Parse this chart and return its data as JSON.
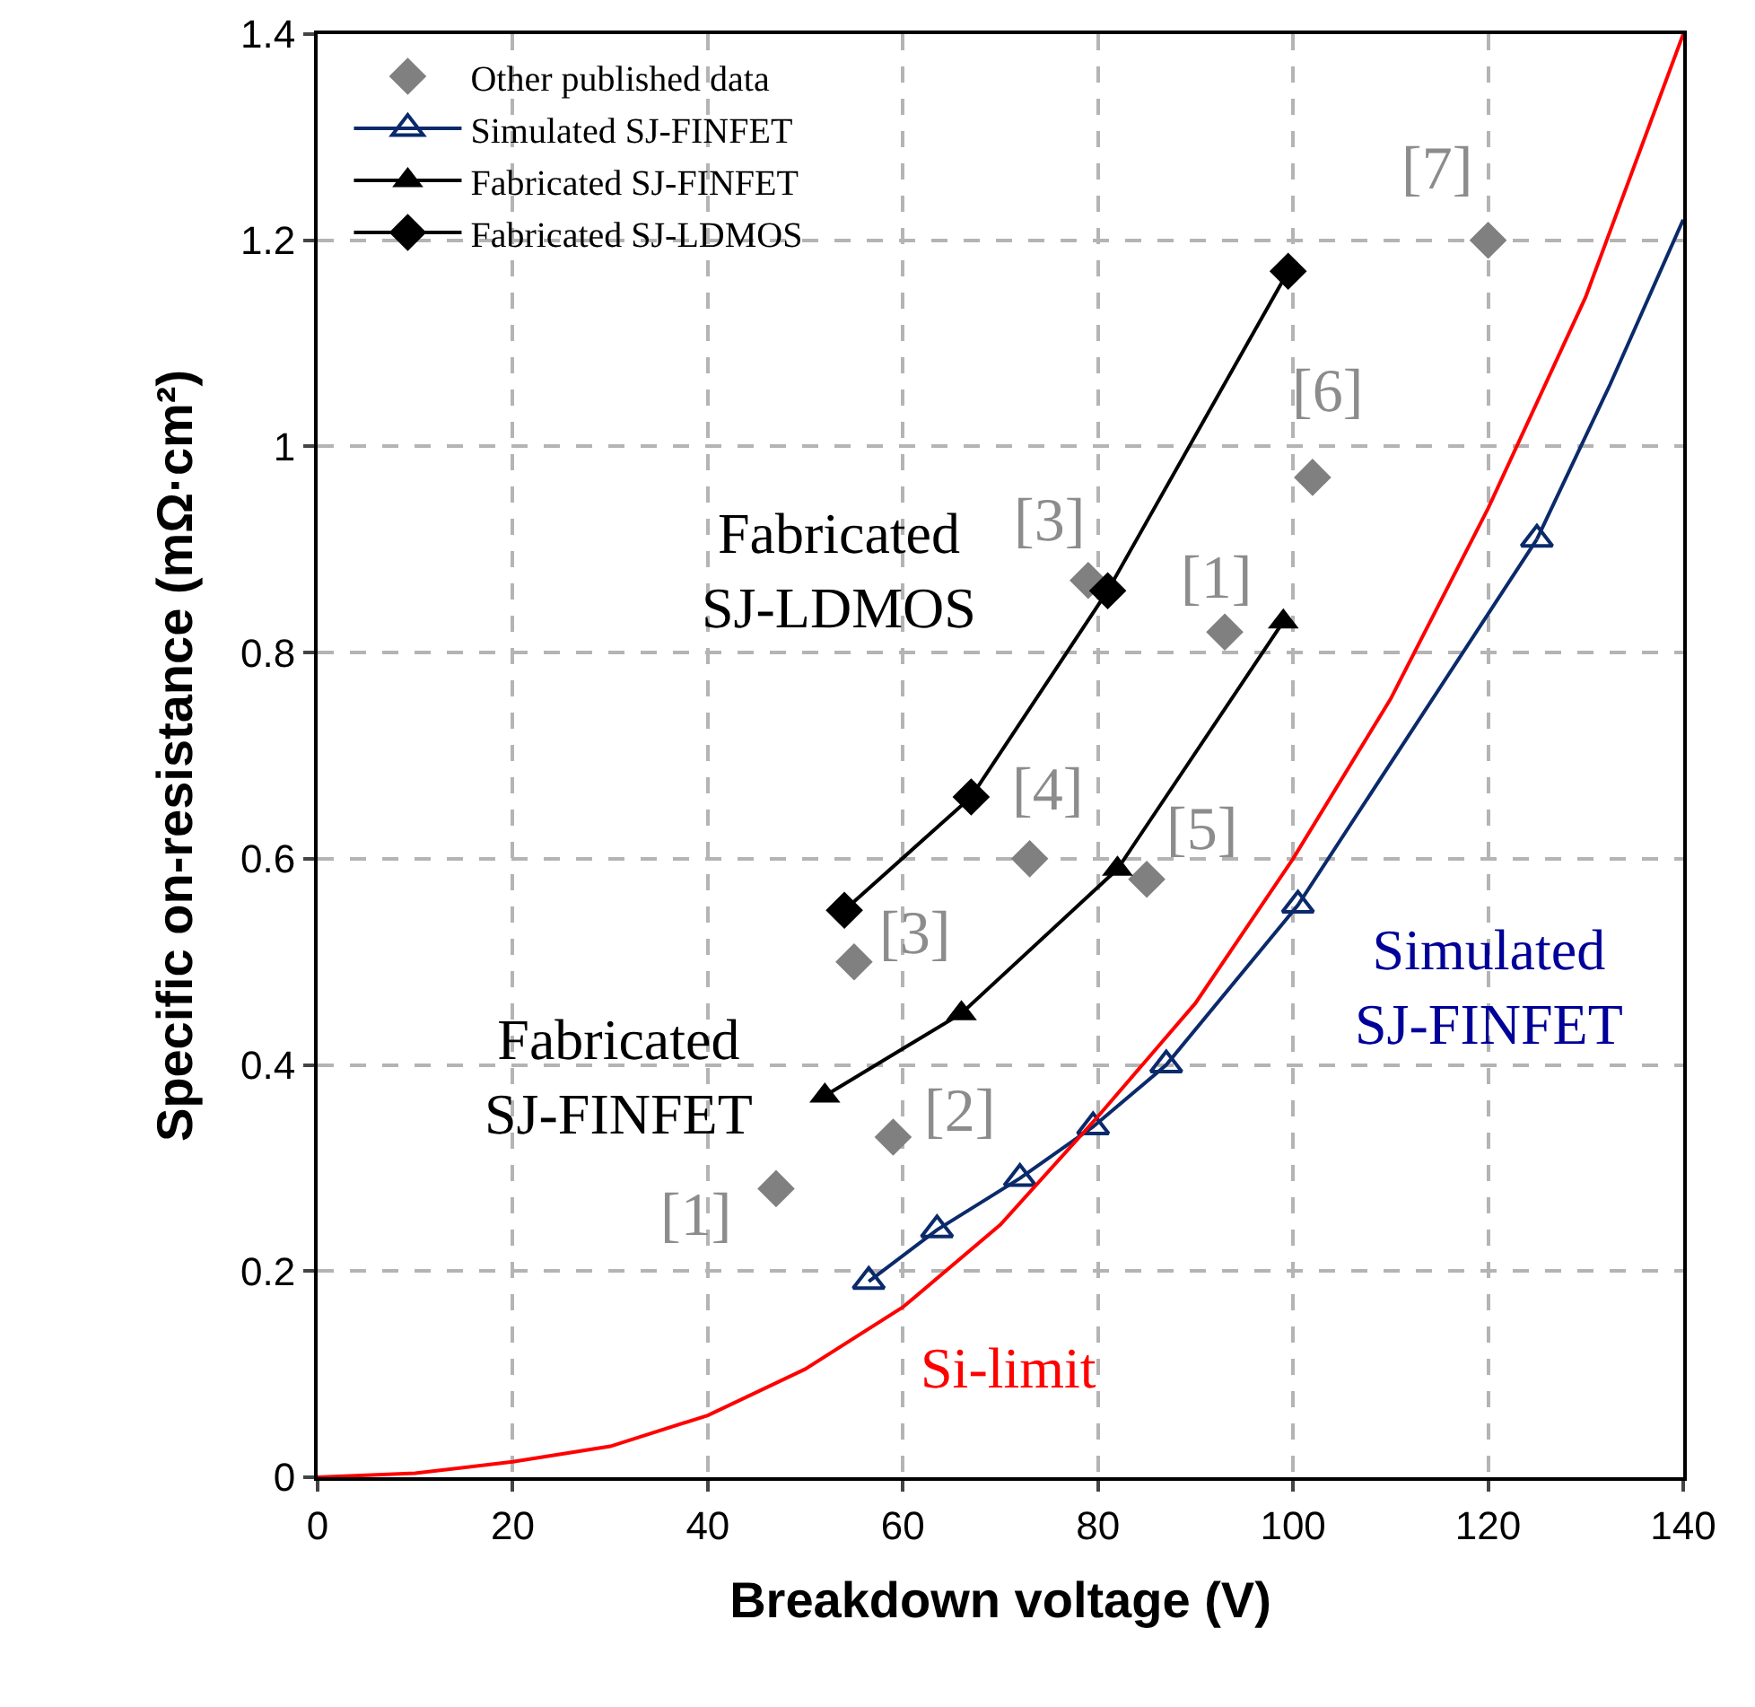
{
  "chart_data": {
    "type": "line",
    "xlabel": "Breakdown voltage (V)",
    "ylabel": "Specific on-resistance (mΩ·cm²)",
    "xlim": [
      0,
      140
    ],
    "xticks": [
      0,
      20,
      40,
      60,
      80,
      100,
      120,
      140
    ],
    "ylim": [
      0,
      1.4
    ],
    "yticks": [
      0,
      0.2,
      0.4,
      0.6,
      0.8,
      1,
      1.2,
      1.4
    ],
    "grid": true,
    "legend": "top left",
    "line_style": "solid",
    "series": [
      {
        "name": "Other published data",
        "type": "scatter",
        "marker": "diamond",
        "color": "#808080",
        "x": [
          47,
          59,
          55,
          73,
          85,
          79,
          93,
          102,
          120
        ],
        "values": [
          0.28,
          0.33,
          0.5,
          0.6,
          0.58,
          0.87,
          0.82,
          0.97,
          1.2
        ]
      },
      {
        "name": "Simulated SJ-FINFET",
        "marker": "triangle",
        "color": "#0b2a6b",
        "x": [
          56.5,
          63.5,
          72,
          79.5,
          87,
          100.5,
          125
        ],
        "values": [
          0.19,
          0.24,
          0.29,
          0.34,
          0.4,
          0.555,
          0.91
        ]
      },
      {
        "name": "Fabricated SJ-FINFET",
        "marker": "triangle",
        "color": "#000000",
        "x": [
          52,
          66,
          82,
          99
        ],
        "values": [
          0.37,
          0.45,
          0.59,
          0.83
        ]
      },
      {
        "name": "Fabricated SJ-LDMOS",
        "marker": "diamond",
        "color": "#000000",
        "x": [
          54,
          67,
          81,
          99.5
        ],
        "values": [
          0.55,
          0.66,
          0.86,
          1.17
        ]
      },
      {
        "marker": "none",
        "color": "#0b2a6b",
        "x": [
          125,
          132.5,
          140
        ],
        "values": [
          0.91,
          1.06,
          1.22
        ]
      },
      {
        "marker": "none",
        "color": "#ff0000",
        "x": [
          0,
          10,
          20,
          30,
          40,
          50,
          60,
          70,
          80,
          90,
          100,
          110,
          120,
          130,
          140
        ],
        "values": [
          0,
          0.004,
          0.015,
          0.03,
          0.06,
          0.105,
          0.165,
          0.245,
          0.35,
          0.46,
          0.6,
          0.755,
          0.94,
          1.145,
          1.4
        ]
      }
    ],
    "annotations": [
      {
        "text": "[7]",
        "x": 120,
        "y": 1.2
      },
      {
        "text": "[6]",
        "x": 102,
        "y": 0.97
      },
      {
        "text": "[3]",
        "x": 79,
        "y": 0.87
      },
      {
        "text": "[1]",
        "x": 93,
        "y": 0.82
      },
      {
        "text": "[4]",
        "x": 73,
        "y": 0.6
      },
      {
        "text": "[5]",
        "x": 85,
        "y": 0.58
      },
      {
        "text": "[3]",
        "x": 55,
        "y": 0.5
      },
      {
        "text": "[2]",
        "x": 59,
        "y": 0.33
      },
      {
        "text": "[1]",
        "x": 47,
        "y": 0.28
      },
      "Fabricated\nSJ-LDMOS",
      "Fabricated\nSJ-FINFET",
      "Simulated\nSJ-FINFET",
      "Si-limit"
    ]
  }
}
